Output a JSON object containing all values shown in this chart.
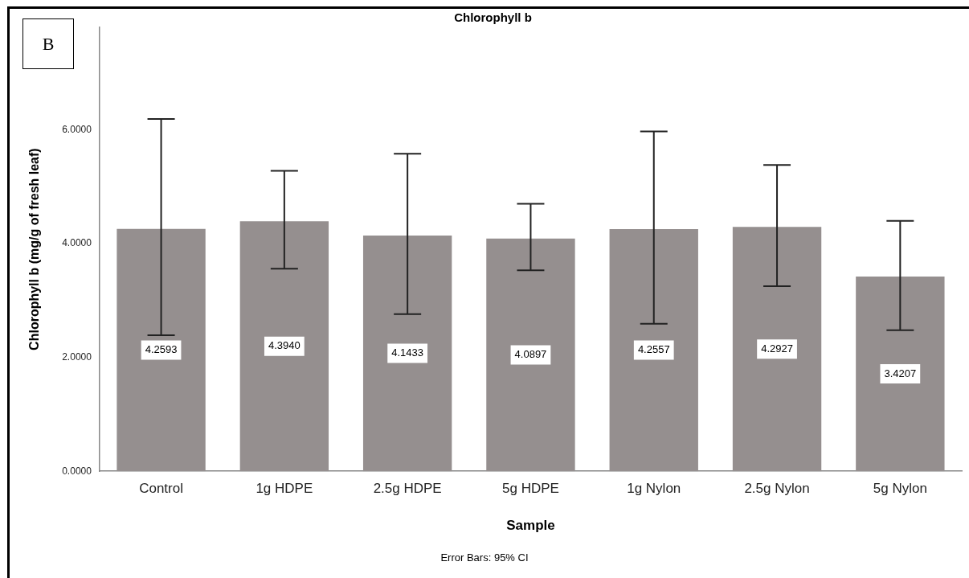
{
  "chart_data": {
    "type": "bar",
    "title": "Chlorophyll b",
    "xlabel": "Sample",
    "ylabel": "Chlorophyll b (mg/g of fresh leaf)",
    "annotations": [
      "B",
      "Error Bars: 95% CI"
    ],
    "categories": [
      "Control",
      "1g HDPE",
      "2.5g HDPE",
      "5g HDPE",
      "1g Nylon",
      "2.5g Nylon",
      "5g Nylon"
    ],
    "values": [
      4.2593,
      4.394,
      4.1433,
      4.0897,
      4.2557,
      4.2927,
      3.4207
    ],
    "value_labels": [
      "4.2593",
      "4.3940",
      "4.1433",
      "4.0897",
      "4.2557",
      "4.2927",
      "3.4207"
    ],
    "errors": [
      [
        2.39,
        6.19
      ],
      [
        3.56,
        5.28
      ],
      [
        2.76,
        5.58
      ],
      [
        3.53,
        4.7
      ],
      [
        2.59,
        5.97
      ],
      [
        3.25,
        5.38
      ],
      [
        2.48,
        4.4
      ]
    ],
    "color": "#958f8f",
    "ylim": [
      0,
      7.8
    ],
    "yticks": [
      {
        "value": 0,
        "label": "0.0000"
      },
      {
        "value": 2,
        "label": "2.0000"
      },
      {
        "value": 4,
        "label": "4.0000"
      },
      {
        "value": 6,
        "label": "6.0000"
      }
    ],
    "grid": false,
    "legend": false
  }
}
